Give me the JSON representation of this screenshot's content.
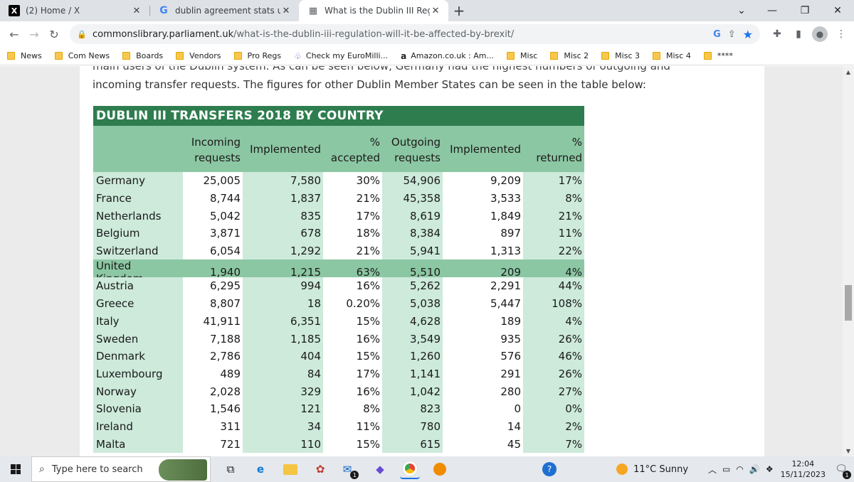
{
  "browser": {
    "tabs": [
      {
        "title": "(2) Home / X",
        "icon": "x-logo-icon"
      },
      {
        "title": "dublin agreement stats uk - Goo",
        "icon": "google-icon"
      },
      {
        "title": "What is the Dublin III Regulation",
        "icon": "document-icon"
      }
    ],
    "url_host": "commonslibrary.parliament.uk",
    "url_path": "/what-is-the-dublin-iii-regulation-will-it-be-affected-by-brexit/",
    "bookmarks": [
      "News",
      "Com News",
      "Boards",
      "Vendors",
      "Pro Regs",
      "Check my EuroMilli...",
      "Amazon.co.uk : Am...",
      "Misc",
      "Misc 2",
      "Misc 3",
      "Misc 4",
      "****"
    ]
  },
  "article": {
    "cut_line": "main users of the Dublin system. As can be seen below, Germany had the highest numbers of outgoing and",
    "line2": "incoming transfer requests. The figures for other Dublin Member States can be seen in the table below:"
  },
  "table": {
    "title": "DUBLIN III TRANSFERS 2018 BY COUNTRY",
    "headers": [
      "",
      "Incoming\nrequests",
      "Implemented",
      "%\naccepted",
      "Outgoing\nrequests",
      "Implemented",
      "%\nreturned"
    ],
    "rows": [
      [
        "Germany",
        "25,005",
        "7,580",
        "30%",
        "54,906",
        "9,209",
        "17%"
      ],
      [
        "France",
        "8,744",
        "1,837",
        "21%",
        "45,358",
        "3,533",
        "8%"
      ],
      [
        "Netherlands",
        "5,042",
        "835",
        "17%",
        "8,619",
        "1,849",
        "21%"
      ],
      [
        "Belgium",
        "3,871",
        "678",
        "18%",
        "8,384",
        "897",
        "11%"
      ],
      [
        "Switzerland",
        "6,054",
        "1,292",
        "21%",
        "5,941",
        "1,313",
        "22%"
      ],
      [
        "United Kingdom",
        "1,940",
        "1,215",
        "63%",
        "5,510",
        "209",
        "4%"
      ],
      [
        "Austria",
        "6,295",
        "994",
        "16%",
        "5,262",
        "2,291",
        "44%"
      ],
      [
        "Greece",
        "8,807",
        "18",
        "0.20%",
        "5,038",
        "5,447",
        "108%"
      ],
      [
        "Italy",
        "41,911",
        "6,351",
        "15%",
        "4,628",
        "189",
        "4%"
      ],
      [
        "Sweden",
        "7,188",
        "1,185",
        "16%",
        "3,549",
        "935",
        "26%"
      ],
      [
        "Denmark",
        "2,786",
        "404",
        "15%",
        "1,260",
        "576",
        "46%"
      ],
      [
        "Luxembourg",
        "489",
        "84",
        "17%",
        "1,141",
        "291",
        "26%"
      ],
      [
        "Norway",
        "2,028",
        "329",
        "16%",
        "1,042",
        "280",
        "27%"
      ],
      [
        "Slovenia",
        "1,546",
        "121",
        "8%",
        "823",
        "0",
        "0%"
      ],
      [
        "Ireland",
        "311",
        "34",
        "11%",
        "780",
        "14",
        "2%"
      ],
      [
        "Malta",
        "721",
        "110",
        "15%",
        "615",
        "45",
        "7%"
      ]
    ],
    "highlight_row": "United Kingdom",
    "colors": {
      "title_bg": "#2e7d4f",
      "header_bg": "#8cc7a3",
      "light_bg": "#cdeadb"
    }
  },
  "taskbar": {
    "search_placeholder": "Type here to search",
    "weather": "11°C  Sunny",
    "time": "12:04",
    "date": "15/11/2023",
    "mail_badge": "1",
    "notif_badge": "1"
  }
}
